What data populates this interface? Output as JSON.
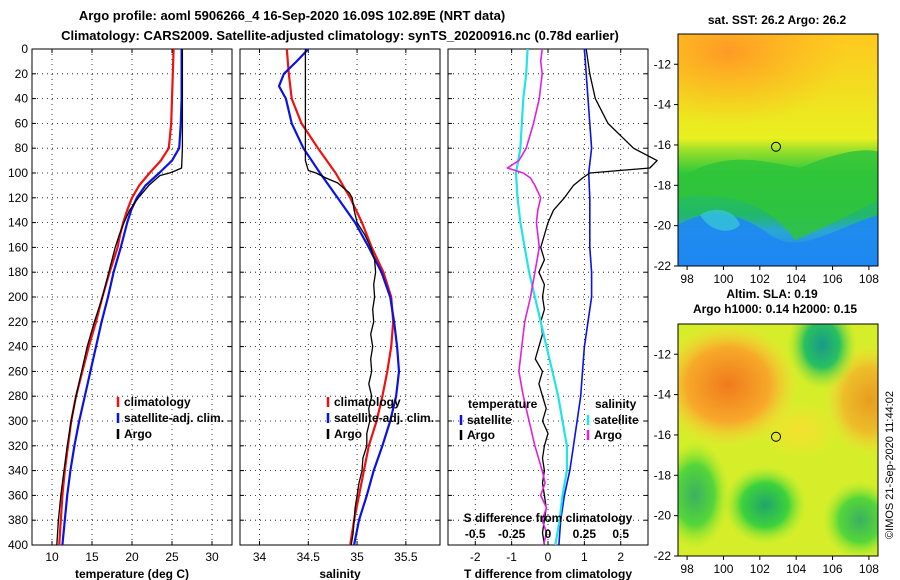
{
  "header": {
    "line1": "Argo profile: aoml 5906266_4 16-Sep-2020 16.09S 102.89E (NRT data)",
    "line2": "Climatology: CARS2009. Satellite-adjusted climatology: synTS_20200916.nc (0.78d earlier)"
  },
  "timestamp": "©IMOS 21-Sep-2020 11:44:02",
  "colors": {
    "red": "#ee1111",
    "blue": "#0a12e6",
    "black": "#000000",
    "magenta": "#e020e0",
    "cyan": "#22e4e4"
  },
  "chart_data": [
    {
      "type": "line",
      "name": "temperature-profile",
      "xlabel": "temperature (deg C)",
      "xlim": [
        7.5,
        32.5
      ],
      "xticks": [
        10,
        15,
        20,
        25,
        30
      ],
      "xtick_labels": [
        "10",
        "15",
        "20",
        "25",
        "30"
      ],
      "ylim": [
        0,
        400
      ],
      "yticks": [
        0,
        20,
        40,
        60,
        80,
        100,
        120,
        140,
        160,
        180,
        200,
        220,
        240,
        260,
        280,
        300,
        320,
        340,
        360,
        380,
        400
      ],
      "grid": true,
      "legend": {
        "position": "right-middle",
        "entries": [
          "climatology",
          "satellite-adj. clim.",
          "Argo"
        ]
      },
      "series": [
        {
          "name": "climatology",
          "color": "red",
          "width": 2.2,
          "depth": [
            0,
            20,
            40,
            60,
            80,
            90,
            100,
            110,
            120,
            130,
            140,
            150,
            160,
            180,
            200,
            220,
            240,
            260,
            280,
            300,
            320,
            340,
            360,
            380,
            400
          ],
          "values": [
            25.2,
            25.1,
            25.0,
            24.9,
            24.6,
            23.6,
            22.2,
            20.9,
            20.0,
            19.4,
            18.9,
            18.5,
            18.2,
            17.2,
            16.3,
            15.5,
            14.6,
            13.8,
            13.0,
            12.4,
            12.0,
            11.6,
            11.3,
            11.1,
            10.9
          ]
        },
        {
          "name": "satellite-adj. clim.",
          "color": "blue",
          "width": 2.2,
          "depth": [
            0,
            20,
            40,
            60,
            80,
            90,
            100,
            110,
            120,
            130,
            140,
            150,
            160,
            180,
            200,
            220,
            240,
            260,
            280,
            300,
            320,
            340,
            360,
            380,
            400
          ],
          "values": [
            26.2,
            26.2,
            26.2,
            26.1,
            25.9,
            25.0,
            23.4,
            21.7,
            20.6,
            19.9,
            19.4,
            19.0,
            18.6,
            17.7,
            17.0,
            16.2,
            15.5,
            14.8,
            14.1,
            13.4,
            12.8,
            12.3,
            11.9,
            11.6,
            11.3
          ]
        },
        {
          "name": "Argo",
          "color": "black",
          "width": 1.3,
          "depth": [
            0,
            20,
            40,
            60,
            80,
            96,
            98,
            100,
            102,
            110,
            120,
            130,
            140,
            150,
            160,
            180,
            200,
            220,
            240,
            260,
            280,
            300,
            320,
            340,
            360,
            380,
            400
          ],
          "values": [
            26.3,
            26.3,
            26.3,
            26.3,
            26.3,
            26.2,
            25.5,
            24.7,
            23.5,
            22.1,
            20.8,
            19.7,
            19.0,
            18.4,
            17.9,
            17.1,
            16.3,
            15.3,
            14.4,
            13.7,
            13.0,
            12.4,
            11.9,
            11.5,
            11.1,
            10.8,
            10.6
          ]
        }
      ]
    },
    {
      "type": "line",
      "name": "salinity-profile",
      "xlabel": "salinity",
      "xlim": [
        33.8,
        35.85
      ],
      "xticks": [
        34,
        34.5,
        35,
        35.5
      ],
      "xtick_labels": [
        "34",
        "34.5",
        "35",
        "35.5"
      ],
      "ylim": [
        0,
        400
      ],
      "grid": true,
      "legend": {
        "position": "right-middle",
        "entries": [
          "climatology",
          "satellite-adj. clim.",
          "Argo"
        ]
      },
      "series": [
        {
          "name": "climatology",
          "color": "red",
          "width": 2.2,
          "depth": [
            0,
            20,
            40,
            60,
            80,
            100,
            120,
            140,
            160,
            180,
            200,
            220,
            240,
            260,
            280,
            300,
            320,
            340,
            360,
            380,
            400
          ],
          "values": [
            34.28,
            34.3,
            34.33,
            34.43,
            34.6,
            34.78,
            34.93,
            35.05,
            35.15,
            35.27,
            35.35,
            35.37,
            35.35,
            35.31,
            35.26,
            35.2,
            35.12,
            35.07,
            35.02,
            34.97,
            34.93
          ]
        },
        {
          "name": "satellite-adj. clim.",
          "color": "blue",
          "width": 2.2,
          "depth": [
            0,
            10,
            20,
            30,
            40,
            60,
            80,
            100,
            120,
            140,
            160,
            180,
            200,
            220,
            240,
            260,
            280,
            300,
            320,
            340,
            360,
            380,
            400
          ],
          "values": [
            34.5,
            34.38,
            34.25,
            34.2,
            34.27,
            34.33,
            34.45,
            34.62,
            34.8,
            34.98,
            35.12,
            35.25,
            35.34,
            35.38,
            35.41,
            35.43,
            35.4,
            35.34,
            35.26,
            35.17,
            35.1,
            35.02,
            34.97
          ]
        },
        {
          "name": "Argo",
          "color": "black",
          "width": 1.3,
          "depth": [
            0,
            20,
            40,
            60,
            80,
            90,
            98,
            100,
            104,
            108,
            112,
            116,
            120,
            130,
            140,
            150,
            160,
            170,
            180,
            190,
            200,
            210,
            220,
            230,
            240,
            250,
            260,
            270,
            280,
            290,
            300,
            310,
            320,
            330,
            340,
            350,
            360,
            370,
            380,
            390,
            400
          ],
          "values": [
            34.47,
            34.47,
            34.47,
            34.47,
            34.47,
            34.47,
            34.5,
            34.58,
            34.68,
            34.8,
            34.86,
            34.92,
            34.95,
            34.97,
            35.0,
            35.08,
            35.14,
            35.18,
            35.19,
            35.17,
            35.18,
            35.16,
            35.17,
            35.14,
            35.16,
            35.14,
            35.15,
            35.12,
            35.15,
            35.12,
            35.13,
            35.1,
            35.1,
            35.06,
            35.05,
            35.02,
            35.0,
            34.98,
            34.97,
            34.96,
            34.94
          ]
        }
      ]
    },
    {
      "type": "line",
      "name": "difference-profile",
      "xlabel": "T difference from climatology",
      "xlabel2": "S difference from climatology",
      "xlim": [
        -2.75,
        2.75
      ],
      "xticks": [
        -2,
        -1,
        0,
        1,
        2
      ],
      "xtick_labels": [
        "-2",
        "-1",
        "0",
        "1",
        "2"
      ],
      "s_xlim": [
        -0.6875,
        0.6875
      ],
      "s_xticks": [
        -0.5,
        -0.25,
        0,
        0.25,
        0.5
      ],
      "s_xtick_labels": [
        "-0.5",
        "-0.25",
        "0",
        "0.25",
        "0.5"
      ],
      "ylim": [
        0,
        400
      ],
      "grid": true,
      "legend_temperature": {
        "title": "temperature",
        "entries": [
          "satellite",
          "Argo"
        ]
      },
      "legend_salinity": {
        "title": "salinity",
        "entries": [
          "satellite",
          "Argo"
        ]
      },
      "series": [
        {
          "name": "temperature satellite",
          "color": "blue",
          "width": 1.6,
          "depth": [
            0,
            20,
            40,
            60,
            80,
            100,
            120,
            140,
            160,
            180,
            200,
            220,
            240,
            260,
            280,
            300,
            320,
            340,
            360,
            380,
            400
          ],
          "values": [
            1.0,
            1.05,
            1.1,
            1.15,
            1.2,
            1.12,
            1.15,
            1.15,
            1.15,
            1.2,
            1.2,
            1.1,
            1.0,
            0.95,
            0.9,
            0.8,
            0.7,
            0.6,
            0.45,
            0.35,
            0.3
          ]
        },
        {
          "name": "temperature Argo",
          "color": "black",
          "width": 1.3,
          "depth": [
            0,
            20,
            40,
            60,
            80,
            90,
            96,
            100,
            104,
            110,
            120,
            130,
            140,
            150,
            160,
            170,
            180,
            190,
            200,
            210,
            220,
            230,
            240,
            250,
            260,
            270,
            280,
            290,
            300,
            310,
            320,
            330,
            340,
            350,
            360,
            370,
            380,
            390,
            400
          ],
          "values": [
            1.05,
            1.15,
            1.3,
            1.65,
            2.35,
            3.0,
            2.8,
            1.15,
            0.95,
            0.7,
            0.45,
            0.15,
            0.0,
            -0.1,
            -0.2,
            -0.1,
            -0.25,
            -0.1,
            -0.15,
            -0.1,
            -0.2,
            -0.15,
            -0.25,
            -0.35,
            -0.15,
            -0.25,
            -0.15,
            -0.05,
            -0.15,
            0.0,
            -0.1,
            -0.15,
            -0.1,
            -0.15,
            -0.1,
            -0.05,
            -0.1,
            -0.15,
            -0.1
          ]
        },
        {
          "name": "salinity satellite",
          "color": "cyan",
          "width": 2.2,
          "depth": [
            0,
            20,
            40,
            60,
            80,
            100,
            120,
            140,
            160,
            180,
            200,
            220,
            240,
            260,
            280,
            300,
            320,
            340,
            360,
            380,
            400
          ],
          "values": [
            -0.14,
            -0.15,
            -0.17,
            -0.18,
            -0.19,
            -0.22,
            -0.21,
            -0.19,
            -0.16,
            -0.13,
            -0.09,
            -0.05,
            -0.01,
            0.03,
            0.07,
            0.1,
            0.13,
            0.13,
            0.1,
            0.08,
            0.05
          ]
        },
        {
          "name": "salinity Argo",
          "color": "magenta",
          "width": 1.6,
          "depth": [
            0,
            10,
            20,
            30,
            40,
            60,
            80,
            90,
            96,
            100,
            104,
            110,
            120,
            130,
            140,
            160,
            180,
            200,
            220,
            240,
            260,
            280,
            300,
            320,
            340,
            350,
            360,
            370,
            380,
            390,
            400
          ],
          "values": [
            -0.04,
            -0.05,
            -0.04,
            -0.05,
            -0.06,
            -0.1,
            -0.15,
            -0.2,
            -0.28,
            -0.17,
            -0.12,
            -0.09,
            -0.05,
            -0.07,
            -0.08,
            -0.06,
            -0.09,
            -0.12,
            -0.16,
            -0.18,
            -0.2,
            -0.17,
            -0.13,
            -0.09,
            -0.04,
            -0.02,
            -0.05,
            -0.01,
            -0.04,
            -0.01,
            -0.03
          ]
        }
      ]
    },
    {
      "type": "heatmap",
      "name": "sst-map",
      "title": "sat. SST: 26.2 Argo: 26.2",
      "xlim": [
        97.5,
        108.5
      ],
      "ylim": [
        -22,
        -10.5
      ],
      "xticks": [
        98,
        100,
        102,
        104,
        106,
        108
      ],
      "yticks": [
        -12,
        -14,
        -16,
        -18,
        -20,
        -22
      ],
      "marker": {
        "lon": 102.89,
        "lat": -16.09
      }
    },
    {
      "type": "heatmap",
      "name": "sla-map",
      "title": "Altim. SLA: 0.19",
      "subtitle": "Argo h1000: 0.14 h2000: 0.15",
      "xlim": [
        97.5,
        108.5
      ],
      "ylim": [
        -22,
        -10.5
      ],
      "xticks": [
        98,
        100,
        102,
        104,
        106,
        108
      ],
      "yticks": [
        -12,
        -14,
        -16,
        -18,
        -20,
        -22
      ],
      "marker": {
        "lon": 102.89,
        "lat": -16.09
      }
    }
  ]
}
